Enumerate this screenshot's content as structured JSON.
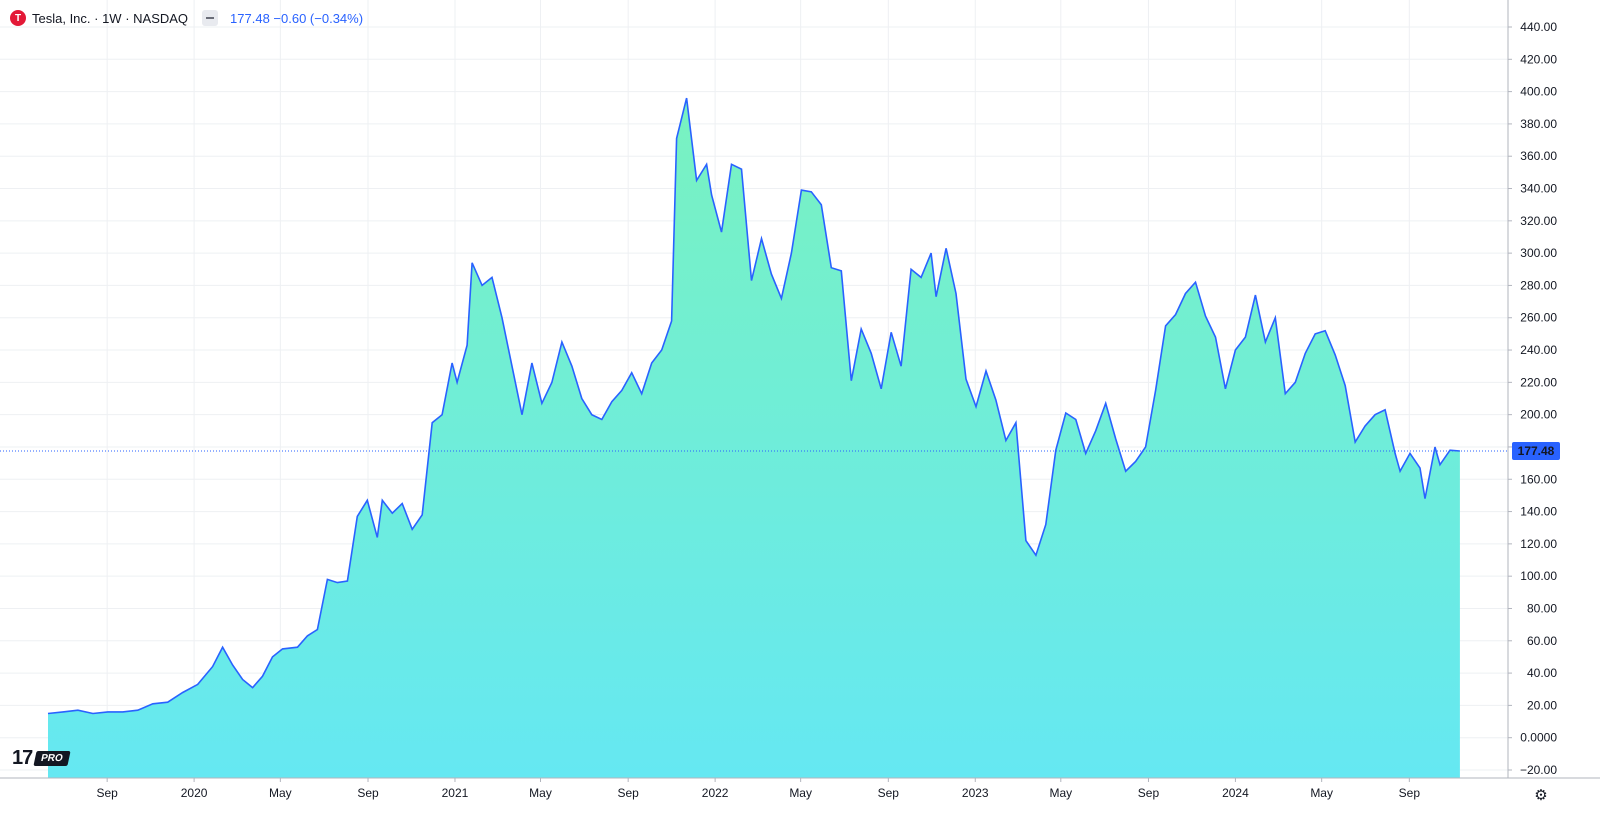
{
  "legend": {
    "logo_letter": "T",
    "symbol": "Tesla, Inc. · 1W · NASDAQ",
    "quote": "177.48 −0.60 (−0.34%)"
  },
  "watermark": {
    "mark": "17",
    "pro": "PRO"
  },
  "settings_icon": "gear-icon",
  "colors": {
    "line": "#2962ff",
    "fill_top": "#79f2c0",
    "fill_bottom": "#65e8f2",
    "grid": "#eef0f3",
    "price_label_bg": "#2962ff"
  },
  "chart_data": {
    "type": "area",
    "symbol": "TSLA",
    "interval": "1W",
    "ylim": [
      -20,
      440
    ],
    "y_ticks": [
      "440.00",
      "420.00",
      "400.00",
      "380.00",
      "360.00",
      "340.00",
      "320.00",
      "300.00",
      "280.00",
      "260.00",
      "240.00",
      "220.00",
      "200.00",
      "180.00",
      "160.00",
      "140.00",
      "120.00",
      "100.00",
      "80.00",
      "60.00",
      "40.00",
      "20.00",
      "0.0000",
      "−20.00"
    ],
    "y_tick_values": [
      440,
      420,
      400,
      380,
      360,
      340,
      320,
      300,
      280,
      260,
      240,
      220,
      200,
      180,
      160,
      140,
      120,
      100,
      80,
      60,
      40,
      20,
      0,
      -20
    ],
    "x_ticks": [
      {
        "label": "Sep",
        "date": "2019-09-01"
      },
      {
        "label": "2020",
        "date": "2020-01-01"
      },
      {
        "label": "May",
        "date": "2020-05-01"
      },
      {
        "label": "Sep",
        "date": "2020-09-01"
      },
      {
        "label": "2021",
        "date": "2021-01-01"
      },
      {
        "label": "May",
        "date": "2021-05-01"
      },
      {
        "label": "Sep",
        "date": "2021-09-01"
      },
      {
        "label": "2022",
        "date": "2022-01-01"
      },
      {
        "label": "May",
        "date": "2022-05-01"
      },
      {
        "label": "Sep",
        "date": "2022-09-01"
      },
      {
        "label": "2023",
        "date": "2023-01-01"
      },
      {
        "label": "May",
        "date": "2023-05-01"
      },
      {
        "label": "Sep",
        "date": "2023-09-01"
      },
      {
        "label": "2024",
        "date": "2024-01-01"
      },
      {
        "label": "May",
        "date": "2024-05-01"
      },
      {
        "label": "Sep",
        "date": "2024-09-01"
      }
    ],
    "last_price": 177.48,
    "last_price_label": "177.48",
    "series": [
      {
        "points": [
          [
            "2019-06-10",
            15
          ],
          [
            "2019-07-01",
            16
          ],
          [
            "2019-07-22",
            17
          ],
          [
            "2019-08-12",
            15
          ],
          [
            "2019-09-02",
            16
          ],
          [
            "2019-09-23",
            16
          ],
          [
            "2019-10-14",
            17
          ],
          [
            "2019-11-04",
            21
          ],
          [
            "2019-11-25",
            22
          ],
          [
            "2019-12-16",
            28
          ],
          [
            "2020-01-06",
            33
          ],
          [
            "2020-01-27",
            44
          ],
          [
            "2020-02-10",
            56
          ],
          [
            "2020-02-24",
            45
          ],
          [
            "2020-03-09",
            36
          ],
          [
            "2020-03-23",
            31
          ],
          [
            "2020-04-06",
            38
          ],
          [
            "2020-04-20",
            50
          ],
          [
            "2020-05-04",
            55
          ],
          [
            "2020-05-25",
            56
          ],
          [
            "2020-06-08",
            63
          ],
          [
            "2020-06-22",
            67
          ],
          [
            "2020-07-06",
            98
          ],
          [
            "2020-07-20",
            96
          ],
          [
            "2020-08-03",
            97
          ],
          [
            "2020-08-17",
            137
          ],
          [
            "2020-08-31",
            147
          ],
          [
            "2020-09-14",
            124
          ],
          [
            "2020-09-21",
            147
          ],
          [
            "2020-10-05",
            139
          ],
          [
            "2020-10-19",
            145
          ],
          [
            "2020-11-02",
            129
          ],
          [
            "2020-11-16",
            138
          ],
          [
            "2020-11-30",
            195
          ],
          [
            "2020-12-14",
            200
          ],
          [
            "2020-12-28",
            232
          ],
          [
            "2021-01-04",
            220
          ],
          [
            "2021-01-18",
            243
          ],
          [
            "2021-01-25",
            294
          ],
          [
            "2021-02-08",
            280
          ],
          [
            "2021-02-22",
            285
          ],
          [
            "2021-03-08",
            260
          ],
          [
            "2021-03-22",
            230
          ],
          [
            "2021-04-05",
            200
          ],
          [
            "2021-04-19",
            232
          ],
          [
            "2021-05-03",
            207
          ],
          [
            "2021-05-17",
            220
          ],
          [
            "2021-05-31",
            245
          ],
          [
            "2021-06-14",
            230
          ],
          [
            "2021-06-28",
            210
          ],
          [
            "2021-07-12",
            200
          ],
          [
            "2021-07-26",
            197
          ],
          [
            "2021-08-09",
            208
          ],
          [
            "2021-08-23",
            215
          ],
          [
            "2021-09-06",
            226
          ],
          [
            "2021-09-20",
            213
          ],
          [
            "2021-10-04",
            232
          ],
          [
            "2021-10-18",
            240
          ],
          [
            "2021-11-01",
            258
          ],
          [
            "2021-11-08",
            371
          ],
          [
            "2021-11-22",
            396
          ],
          [
            "2021-12-06",
            345
          ],
          [
            "2021-12-20",
            355
          ],
          [
            "2021-12-27",
            336
          ],
          [
            "2022-01-10",
            313
          ],
          [
            "2022-01-24",
            355
          ],
          [
            "2022-02-07",
            352
          ],
          [
            "2022-02-21",
            283
          ],
          [
            "2022-03-07",
            309
          ],
          [
            "2022-03-21",
            287
          ],
          [
            "2022-04-04",
            272
          ],
          [
            "2022-04-18",
            300
          ],
          [
            "2022-05-02",
            339
          ],
          [
            "2022-05-16",
            338
          ],
          [
            "2022-05-30",
            330
          ],
          [
            "2022-06-13",
            291
          ],
          [
            "2022-06-27",
            289
          ],
          [
            "2022-07-11",
            221
          ],
          [
            "2022-07-25",
            253
          ],
          [
            "2022-08-08",
            238
          ],
          [
            "2022-08-22",
            216
          ],
          [
            "2022-09-05",
            251
          ],
          [
            "2022-09-19",
            230
          ],
          [
            "2022-10-03",
            290
          ],
          [
            "2022-10-17",
            285
          ],
          [
            "2022-10-31",
            300
          ],
          [
            "2022-11-07",
            273
          ],
          [
            "2022-11-21",
            303
          ],
          [
            "2022-12-05",
            275
          ],
          [
            "2022-12-19",
            222
          ],
          [
            "2023-01-02",
            205
          ],
          [
            "2023-01-16",
            227
          ],
          [
            "2023-01-30",
            209
          ],
          [
            "2023-02-13",
            184
          ],
          [
            "2023-02-27",
            195
          ],
          [
            "2023-03-13",
            122
          ],
          [
            "2023-03-27",
            113
          ],
          [
            "2023-04-10",
            132
          ],
          [
            "2023-04-24",
            178
          ],
          [
            "2023-05-08",
            201
          ],
          [
            "2023-05-22",
            197
          ],
          [
            "2023-06-05",
            176
          ],
          [
            "2023-06-19",
            190
          ],
          [
            "2023-07-03",
            207
          ],
          [
            "2023-07-17",
            185
          ],
          [
            "2023-07-31",
            165
          ],
          [
            "2023-08-14",
            171
          ],
          [
            "2023-08-28",
            180
          ],
          [
            "2023-09-11",
            215
          ],
          [
            "2023-09-25",
            255
          ],
          [
            "2023-10-09",
            262
          ],
          [
            "2023-10-23",
            275
          ],
          [
            "2023-11-06",
            282
          ],
          [
            "2023-11-20",
            261
          ],
          [
            "2023-12-04",
            248
          ],
          [
            "2023-12-18",
            216
          ],
          [
            "2024-01-01",
            240
          ],
          [
            "2024-01-15",
            248
          ],
          [
            "2024-01-29",
            274
          ],
          [
            "2024-02-12",
            245
          ],
          [
            "2024-02-26",
            260
          ],
          [
            "2024-03-11",
            213
          ],
          [
            "2024-03-25",
            220
          ],
          [
            "2024-04-08",
            238
          ],
          [
            "2024-04-22",
            250
          ],
          [
            "2024-05-06",
            252
          ],
          [
            "2024-05-20",
            237
          ],
          [
            "2024-06-03",
            218
          ],
          [
            "2024-06-17",
            183
          ],
          [
            "2024-07-01",
            193
          ],
          [
            "2024-07-15",
            200
          ],
          [
            "2024-07-29",
            203
          ],
          [
            "2024-08-12",
            176
          ],
          [
            "2024-08-19",
            165
          ],
          [
            "2024-09-02",
            176
          ],
          [
            "2024-09-16",
            167
          ],
          [
            "2024-09-23",
            148
          ],
          [
            "2024-10-07",
            180
          ],
          [
            "2024-10-14",
            169
          ],
          [
            "2024-10-28",
            178
          ],
          [
            "2024-11-11",
            177.48
          ]
        ]
      }
    ]
  }
}
